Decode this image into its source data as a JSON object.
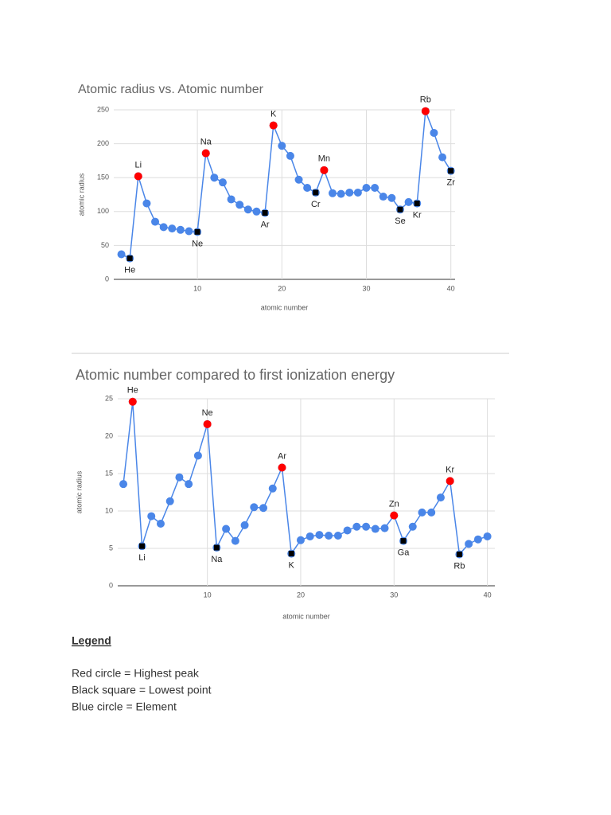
{
  "chart_data": [
    {
      "type": "line",
      "title": "Atomic radius vs. Atomic number",
      "x_label": "atomic number",
      "y_label": "atomic radius",
      "x": [
        1,
        2,
        3,
        4,
        5,
        6,
        7,
        8,
        9,
        10,
        11,
        12,
        13,
        14,
        15,
        16,
        17,
        18,
        19,
        20,
        21,
        22,
        23,
        24,
        25,
        26,
        27,
        28,
        29,
        30,
        31,
        32,
        33,
        34,
        35,
        36,
        37,
        38,
        39,
        40
      ],
      "series": [
        {
          "color": "#4a86e8",
          "values": [
            37,
            31,
            152,
            112,
            85,
            77,
            75,
            73,
            71,
            70,
            186,
            150,
            143,
            118,
            110,
            103,
            100,
            98,
            227,
            197,
            182,
            147,
            135,
            128,
            161,
            127,
            126,
            128,
            128,
            135,
            135,
            122,
            120,
            103,
            114,
            112,
            248,
            216,
            180,
            160
          ]
        }
      ],
      "xlim": [
        0.1,
        40.5
      ],
      "xticks": [
        10,
        20,
        30,
        40
      ],
      "ylim": [
        0,
        250
      ],
      "yticks": [
        0,
        50,
        100,
        150,
        200,
        250
      ],
      "grid": true,
      "peak_color": "#ff0000",
      "low_color": "#000000",
      "annotations": [
        {
          "x": 2,
          "label": "He",
          "marker": "low"
        },
        {
          "x": 3,
          "label": "Li",
          "marker": "peak"
        },
        {
          "x": 10,
          "label": "Ne",
          "marker": "low"
        },
        {
          "x": 11,
          "label": "Na",
          "marker": "peak"
        },
        {
          "x": 18,
          "label": "Ar",
          "marker": "low"
        },
        {
          "x": 19,
          "label": "K",
          "marker": "peak"
        },
        {
          "x": 24,
          "label": "Cr",
          "marker": "low"
        },
        {
          "x": 25,
          "label": "Mn",
          "marker": "peak"
        },
        {
          "x": 34,
          "label": "Se",
          "marker": "low"
        },
        {
          "x": 36,
          "label": "Kr",
          "marker": "low"
        },
        {
          "x": 37,
          "label": "Rb",
          "marker": "peak"
        },
        {
          "x": 40,
          "label": "Zr",
          "marker": "low"
        }
      ]
    },
    {
      "type": "line",
      "title": "Atomic number compared to first ionization energy",
      "x_label": "atomic number",
      "y_label": "atomic radius",
      "x": [
        1,
        2,
        3,
        4,
        5,
        6,
        7,
        8,
        9,
        10,
        11,
        12,
        13,
        14,
        15,
        16,
        17,
        18,
        19,
        20,
        21,
        22,
        23,
        24,
        25,
        26,
        27,
        28,
        29,
        30,
        31,
        32,
        33,
        34,
        35,
        36,
        37,
        38,
        39,
        40
      ],
      "series": [
        {
          "color": "#4a86e8",
          "values": [
            13.6,
            24.6,
            5.3,
            9.3,
            8.3,
            11.3,
            14.5,
            13.6,
            17.4,
            21.6,
            5.1,
            7.6,
            6.0,
            8.1,
            10.5,
            10.4,
            13.0,
            15.8,
            4.3,
            6.1,
            6.6,
            6.8,
            6.7,
            6.7,
            7.4,
            7.9,
            7.9,
            7.6,
            7.7,
            9.4,
            6.0,
            7.9,
            9.8,
            9.8,
            11.8,
            14.0,
            4.2,
            5.6,
            6.2,
            6.6
          ]
        }
      ],
      "xlim": [
        0.4,
        40.8
      ],
      "xticks": [
        10,
        20,
        30,
        40
      ],
      "ylim": [
        0,
        25
      ],
      "yticks": [
        0,
        5,
        10,
        15,
        20,
        25
      ],
      "grid": true,
      "peak_color": "#ff0000",
      "low_color": "#000000",
      "annotations": [
        {
          "x": 2,
          "label": "He",
          "marker": "peak"
        },
        {
          "x": 3,
          "label": "Li",
          "marker": "low"
        },
        {
          "x": 10,
          "label": "Ne",
          "marker": "peak"
        },
        {
          "x": 11,
          "label": "Na",
          "marker": "low"
        },
        {
          "x": 18,
          "label": "Ar",
          "marker": "peak"
        },
        {
          "x": 19,
          "label": "K",
          "marker": "low"
        },
        {
          "x": 30,
          "label": "Zn",
          "marker": "peak"
        },
        {
          "x": 31,
          "label": "Ga",
          "marker": "low"
        },
        {
          "x": 36,
          "label": "Kr",
          "marker": "peak"
        },
        {
          "x": 37,
          "label": "Rb",
          "marker": "low"
        }
      ]
    }
  ],
  "legend": {
    "title": "Legend",
    "items": [
      "Red circle = Highest peak",
      "Black square = Lowest point",
      "Blue circle = Element"
    ]
  }
}
